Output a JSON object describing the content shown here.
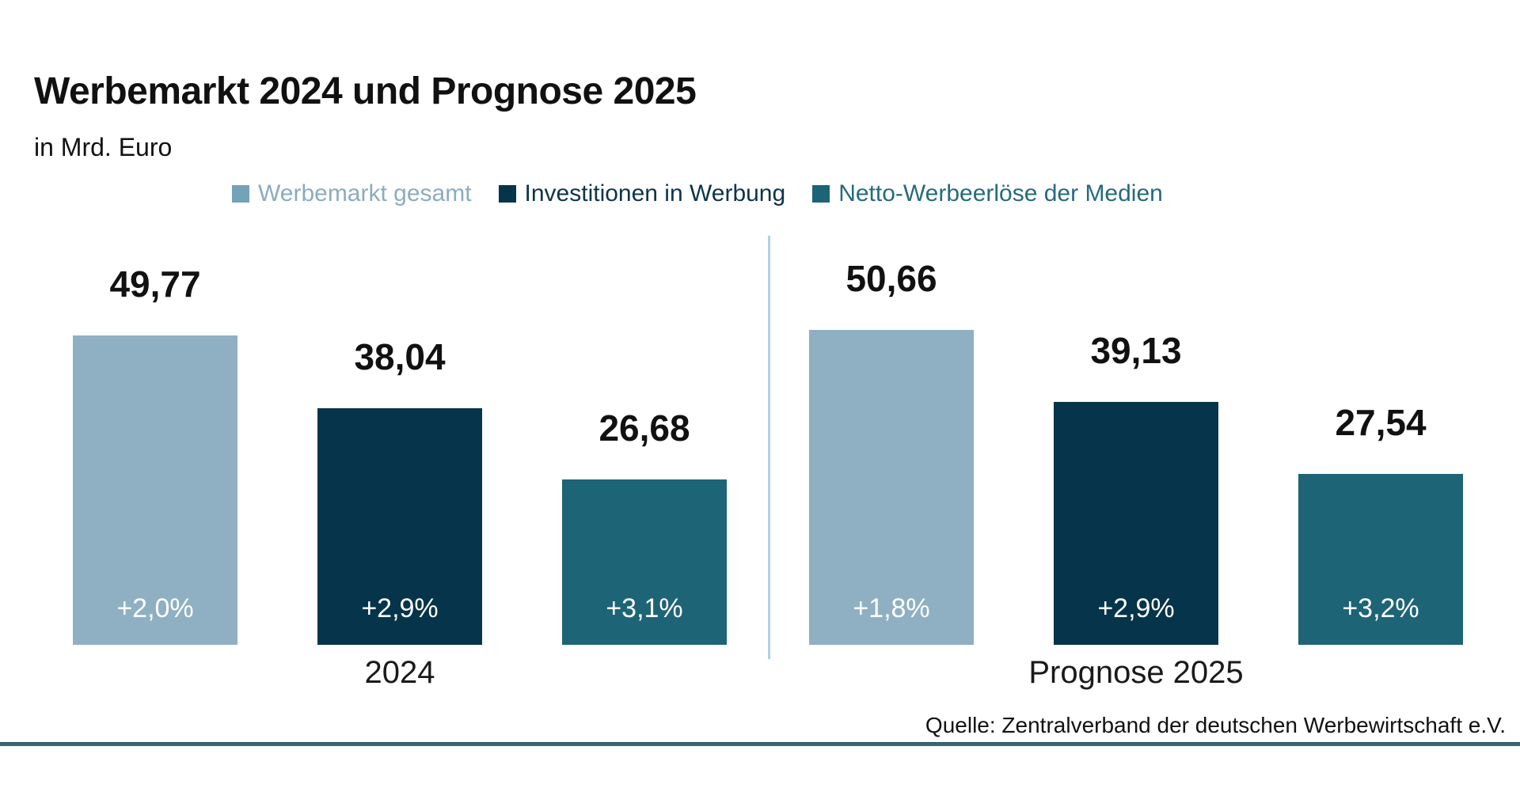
{
  "header": {
    "title": "Werbemarkt 2024 und Prognose 2025",
    "subtitle": "in Mrd. Euro"
  },
  "footer": {
    "source": "Quelle: Zentralverband der deutschen Werbewirtschaft e.V."
  },
  "colors": {
    "divider_line": "#b3d1e0",
    "bottom_rule": "#35687a",
    "bar_value_text": "#111111",
    "change_text_inside_bars": "#ffffff"
  },
  "chart_data": {
    "type": "bar",
    "title": "Werbemarkt 2024 und Prognose 2025",
    "unit": "Mrd. Euro",
    "categories": [
      "2024",
      "Prognose 2025"
    ],
    "series": [
      {
        "name": "Werbemarkt gesamt",
        "color": "#8fb0c3",
        "swatch_color": "#74a2b8",
        "legend_text_color": "#8bacc1",
        "values": [
          49.77,
          50.66
        ],
        "value_labels": [
          "49,77",
          "50,66"
        ],
        "change_labels": [
          "+2,0%",
          "+1,8%"
        ]
      },
      {
        "name": "Investitionen in Werbung",
        "color": "#06344a",
        "swatch_color": "#06344a",
        "legend_text_color": "#0d344a",
        "values": [
          38.04,
          39.13
        ],
        "value_labels": [
          "38,04",
          "39,13"
        ],
        "change_labels": [
          "+2,9%",
          "+2,9%"
        ]
      },
      {
        "name": "Netto-Werbeerlöse der Medien",
        "color": "#1e6477",
        "swatch_color": "#1e6477",
        "legend_text_color": "#256b7d",
        "values": [
          26.68,
          27.54
        ],
        "value_labels": [
          "26,68",
          "27,54"
        ],
        "change_labels": [
          "+3,1%",
          "+3,2%"
        ]
      }
    ],
    "ylim": [
      0,
      55
    ],
    "grid": false,
    "legend_position": "top",
    "value_labels_position": "above bars",
    "change_labels_position": "inside bars at bottom"
  }
}
